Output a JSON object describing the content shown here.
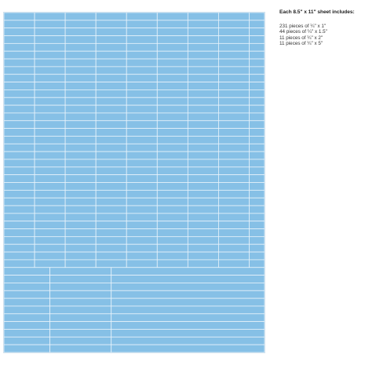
{
  "sheet_info": {
    "heading": "Each 8.5\" x 11\" sheet includes:",
    "pieces": [
      "231 pieces of ¼\" x 1\"",
      "44 pieces of ¼\" x 1.5\"",
      "11 pieces of ¼\" x 2\"",
      "11 pieces of ¼\" x 5\""
    ]
  },
  "colors": {
    "label_fill": "#86c0e6",
    "cut_line": "#e8f3fb",
    "sheet_border": "#d2e2ee",
    "text": "#222222"
  }
}
